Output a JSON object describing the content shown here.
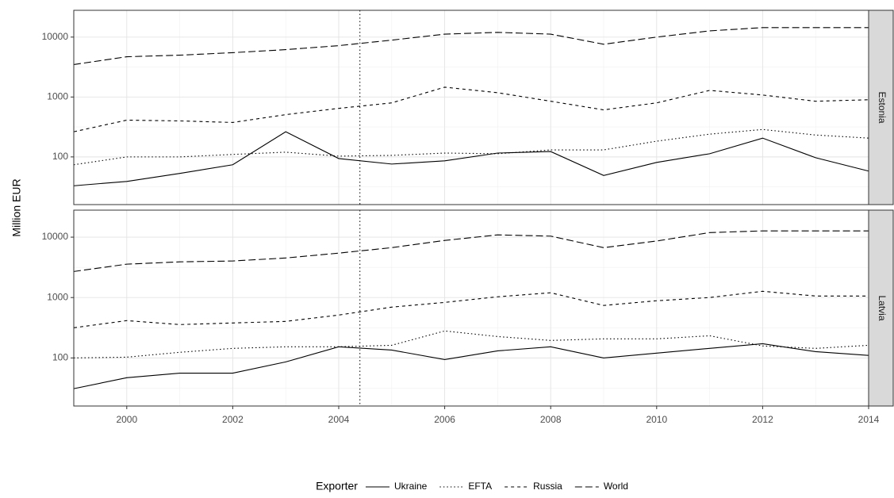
{
  "chart_data": {
    "type": "line",
    "ylabel": "Million EUR",
    "legend_title": "Exporter",
    "legend": "bottom",
    "x": [
      1999,
      2000,
      2001,
      2002,
      2003,
      2004,
      2005,
      2006,
      2007,
      2008,
      2009,
      2010,
      2011,
      2012,
      2013,
      2014
    ],
    "xlim": [
      1999,
      2014
    ],
    "xticks": [
      2000,
      2002,
      2004,
      2006,
      2008,
      2010,
      2012,
      2014
    ],
    "ylim": [
      16,
      28000
    ],
    "yticks": [
      100,
      1000,
      10000
    ],
    "log_y": true,
    "grid": true,
    "vline": 2004.4,
    "series": [
      {
        "name": "Ukraine",
        "color": "#000000",
        "dash": "solid"
      },
      {
        "name": "EFTA",
        "color": "#000000",
        "dash": "dotted"
      },
      {
        "name": "Russia",
        "color": "#000000",
        "dash": "dashed"
      },
      {
        "name": "World",
        "color": "#000000",
        "dash": "longdash"
      }
    ],
    "facets": [
      {
        "label": "Estonia",
        "values": [
          [
            33,
            39,
            53,
            74,
            263,
            94,
            76,
            86,
            116,
            123,
            49,
            81,
            113,
            206,
            97,
            58
          ],
          [
            74,
            100,
            100,
            110,
            120,
            103,
            106,
            116,
            113,
            131,
            131,
            183,
            240,
            287,
            232,
            206
          ],
          [
            263,
            411,
            399,
            376,
            508,
            646,
            798,
            1460,
            1180,
            850,
            610,
            798,
            1290,
            1080,
            850,
            900
          ],
          [
            3480,
            4700,
            4990,
            5500,
            6180,
            7200,
            8900,
            11200,
            12000,
            11200,
            7600,
            10000,
            12700,
            14400,
            14400,
            14400
          ]
        ]
      },
      {
        "label": "Latvia",
        "values": [
          [
            31,
            47,
            56,
            56,
            86,
            153,
            135,
            94,
            131,
            153,
            100,
            120,
            144,
            172,
            127,
            110
          ],
          [
            100,
            103,
            124,
            144,
            153,
            153,
            162,
            280,
            226,
            195,
            207,
            207,
            233,
            158,
            144,
            162
          ],
          [
            316,
            415,
            357,
            379,
            403,
            513,
            694,
            831,
            1030,
            1200,
            740,
            885,
            1000,
            1270,
            1060,
            1060
          ],
          [
            2700,
            3570,
            3900,
            4030,
            4520,
            5440,
            6700,
            8830,
            10900,
            10400,
            6700,
            8630,
            11900,
            12700,
            12700,
            12700
          ]
        ]
      }
    ]
  }
}
